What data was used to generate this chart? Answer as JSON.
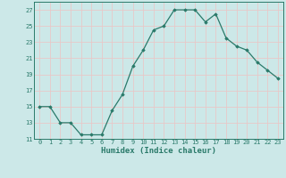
{
  "x": [
    0,
    1,
    2,
    3,
    4,
    5,
    6,
    7,
    8,
    9,
    10,
    11,
    12,
    13,
    14,
    15,
    16,
    17,
    18,
    19,
    20,
    21,
    22,
    23
  ],
  "y": [
    15,
    15,
    13,
    13,
    11.5,
    11.5,
    11.5,
    14.5,
    16.5,
    20,
    22,
    24.5,
    25,
    27,
    27,
    27,
    25.5,
    26.5,
    23.5,
    22.5,
    22,
    20.5,
    19.5,
    18.5
  ],
  "line_color": "#2a7a6a",
  "marker": "D",
  "marker_size": 1.8,
  "bg_color": "#cce8e8",
  "grid_color": "#e8c8c8",
  "xlabel": "Humidex (Indice chaleur)",
  "ylim": [
    11,
    28
  ],
  "xlim": [
    -0.5,
    23.5
  ],
  "yticks": [
    11,
    13,
    15,
    17,
    19,
    21,
    23,
    25,
    27
  ],
  "xticks": [
    0,
    1,
    2,
    3,
    4,
    5,
    6,
    7,
    8,
    9,
    10,
    11,
    12,
    13,
    14,
    15,
    16,
    17,
    18,
    19,
    20,
    21,
    22,
    23
  ],
  "tick_fontsize": 5.0,
  "xlabel_fontsize": 6.5,
  "spine_color": "#2a7a6a",
  "linewidth": 0.9
}
